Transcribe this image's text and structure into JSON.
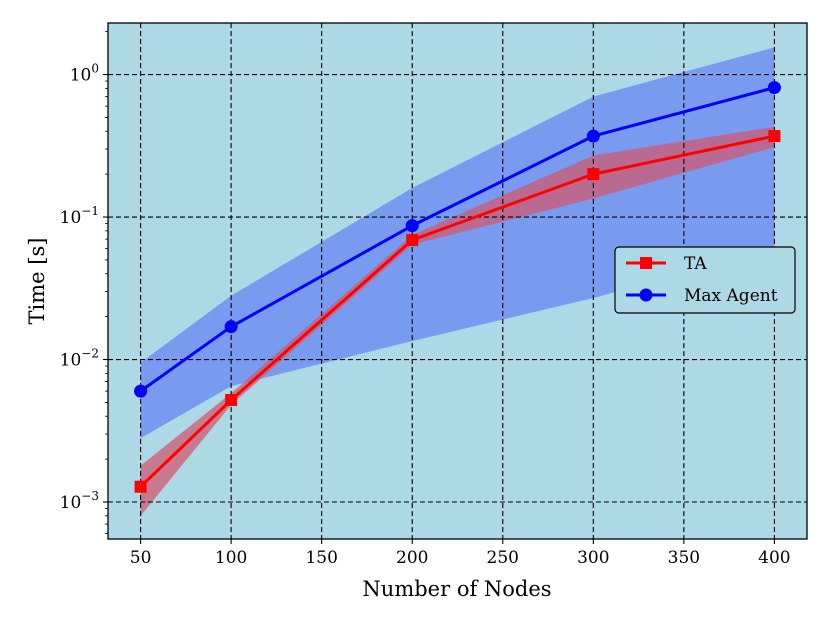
{
  "chart_data": {
    "type": "line",
    "title": "",
    "xlabel": "Number of Nodes",
    "ylabel": "Time [s]",
    "x": [
      50,
      100,
      200,
      300,
      400
    ],
    "xlim": [
      32,
      418
    ],
    "xticks": [
      50,
      100,
      150,
      200,
      250,
      300,
      350,
      400
    ],
    "xtick_labels": [
      "50",
      "100",
      "150",
      "200",
      "250",
      "300",
      "350",
      "400"
    ],
    "y_scale": "log",
    "ylim": [
      0.00055,
      2.3
    ],
    "yticks": [
      0.001,
      0.01,
      0.1,
      1
    ],
    "ytick_labels": [
      {
        "base": "10",
        "exp": "−3"
      },
      {
        "base": "10",
        "exp": "−2"
      },
      {
        "base": "10",
        "exp": "−1"
      },
      {
        "base": "10",
        "exp": "0"
      }
    ],
    "grid": true,
    "legend_position": "center-right",
    "colors": {
      "plot_background": "#add8e6",
      "grid": "#000000",
      "TA": "#ff0000",
      "TA_band": "#d05a70",
      "Max Agent": "#0000ff",
      "Max Agent_band": "#6e8ff0"
    },
    "series": [
      {
        "name": "TA",
        "marker": "square",
        "values": [
          0.00128,
          0.0052,
          0.069,
          0.2,
          0.37
        ],
        "band_low": [
          0.0008,
          0.0048,
          0.064,
          0.135,
          0.31
        ],
        "band_high": [
          0.0018,
          0.0058,
          0.075,
          0.27,
          0.43
        ]
      },
      {
        "name": "Max Agent",
        "marker": "circle",
        "values": [
          0.006,
          0.017,
          0.087,
          0.37,
          0.81
        ],
        "band_low": [
          0.0028,
          0.0065,
          0.0135,
          0.027,
          0.06
        ],
        "band_high": [
          0.0095,
          0.028,
          0.16,
          0.7,
          1.55
        ]
      }
    ]
  }
}
